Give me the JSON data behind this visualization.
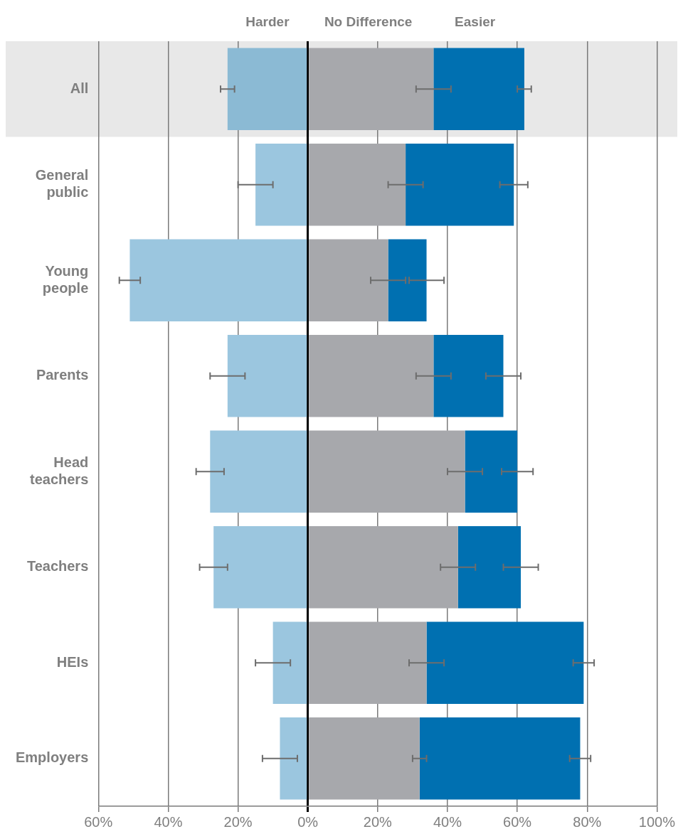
{
  "chart_data": {
    "type": "bar",
    "orientation": "horizontal",
    "stacked": true,
    "categories": [
      "All",
      "General public",
      "Young people",
      "Parents",
      "Head teachers",
      "Teachers",
      "HEIs",
      "Employers"
    ],
    "series": [
      {
        "name": "Harder",
        "colors": [
          "#8bbad4",
          "#9bc6df",
          "#9bc6df",
          "#9bc6df",
          "#9bc6df",
          "#9bc6df",
          "#9bc6df",
          "#9bc6df"
        ],
        "values": [
          -23,
          -15,
          -51,
          -23,
          -28,
          -27,
          -10,
          -8
        ],
        "errors": [
          2,
          5,
          3,
          5,
          4,
          4,
          5,
          5
        ]
      },
      {
        "name": "No Difference",
        "color": "#a7a8ac",
        "values": [
          36,
          28,
          23,
          36,
          45,
          43,
          34,
          32
        ],
        "errors": [
          5,
          5,
          5,
          5,
          5,
          5,
          5,
          2
        ]
      },
      {
        "name": "Easier",
        "color": "#0070b1",
        "values": [
          26,
          31,
          11,
          20,
          15,
          18,
          45,
          46
        ],
        "errors": [
          2,
          4,
          5,
          5,
          4.5,
          5,
          3,
          3
        ]
      }
    ],
    "xlim": [
      -60,
      100
    ],
    "xticks": [
      {
        "value": -60,
        "label": "60%"
      },
      {
        "value": -40,
        "label": "40%"
      },
      {
        "value": -20,
        "label": "20%"
      },
      {
        "value": 0,
        "label": "0%"
      },
      {
        "value": 20,
        "label": "20%"
      },
      {
        "value": 40,
        "label": "40%"
      },
      {
        "value": 60,
        "label": "60%"
      },
      {
        "value": 80,
        "label": "80%"
      },
      {
        "value": 100,
        "label": "100%"
      }
    ],
    "bands": [
      {
        "axis": "y",
        "from": "All",
        "to": "All",
        "color": "#e8e8e8"
      }
    ],
    "grid": "x"
  }
}
